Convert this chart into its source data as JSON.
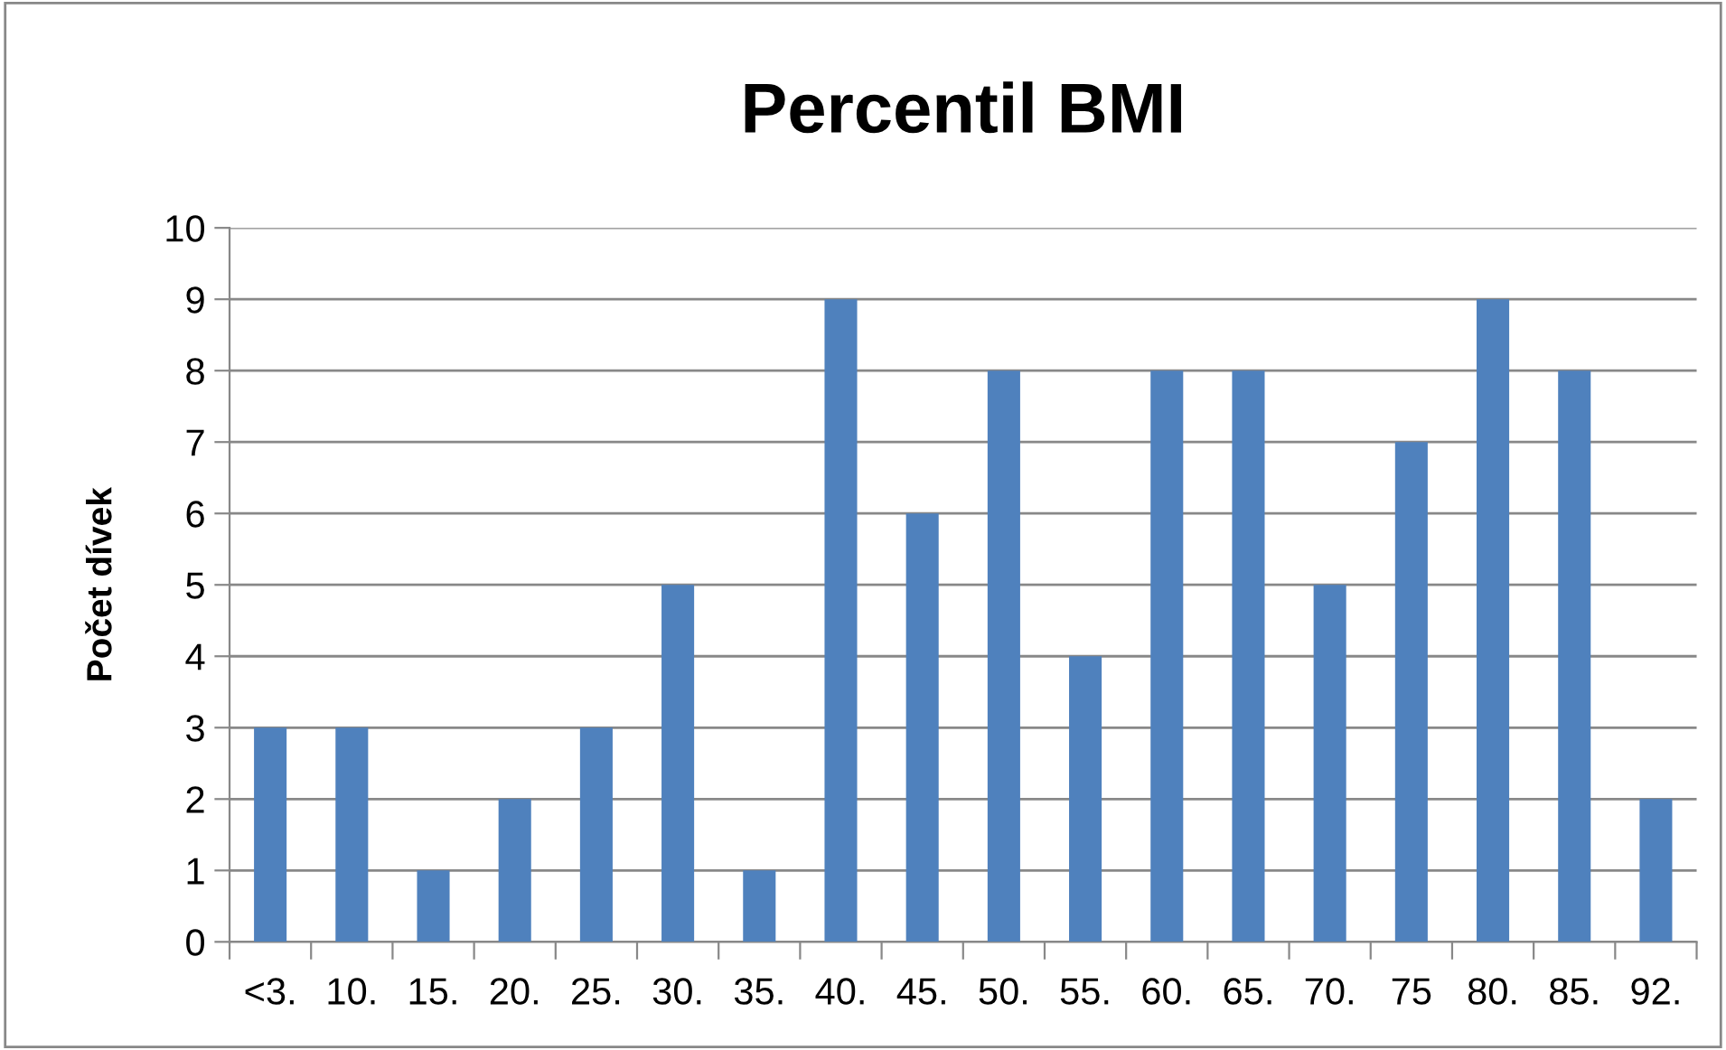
{
  "chart_data": {
    "type": "bar",
    "title": "Percentil BMI",
    "ylabel": "Počet dívek",
    "categories": [
      "<3.",
      "10.",
      "15.",
      "20.",
      "25.",
      "30.",
      "35.",
      "40.",
      "45.",
      "50.",
      "55.",
      "60.",
      "65.",
      "70.",
      "75",
      "80.",
      "85.",
      "92."
    ],
    "values": [
      3,
      3,
      1,
      2,
      3,
      5,
      1,
      9,
      6,
      8,
      4,
      8,
      8,
      5,
      7,
      9,
      8,
      2
    ],
    "color": "#4f81bd",
    "ylim": [
      0,
      10
    ],
    "yticks": [
      0,
      1,
      2,
      3,
      4,
      5,
      6,
      7,
      8,
      9,
      10
    ],
    "grid": "y",
    "legend": false
  }
}
